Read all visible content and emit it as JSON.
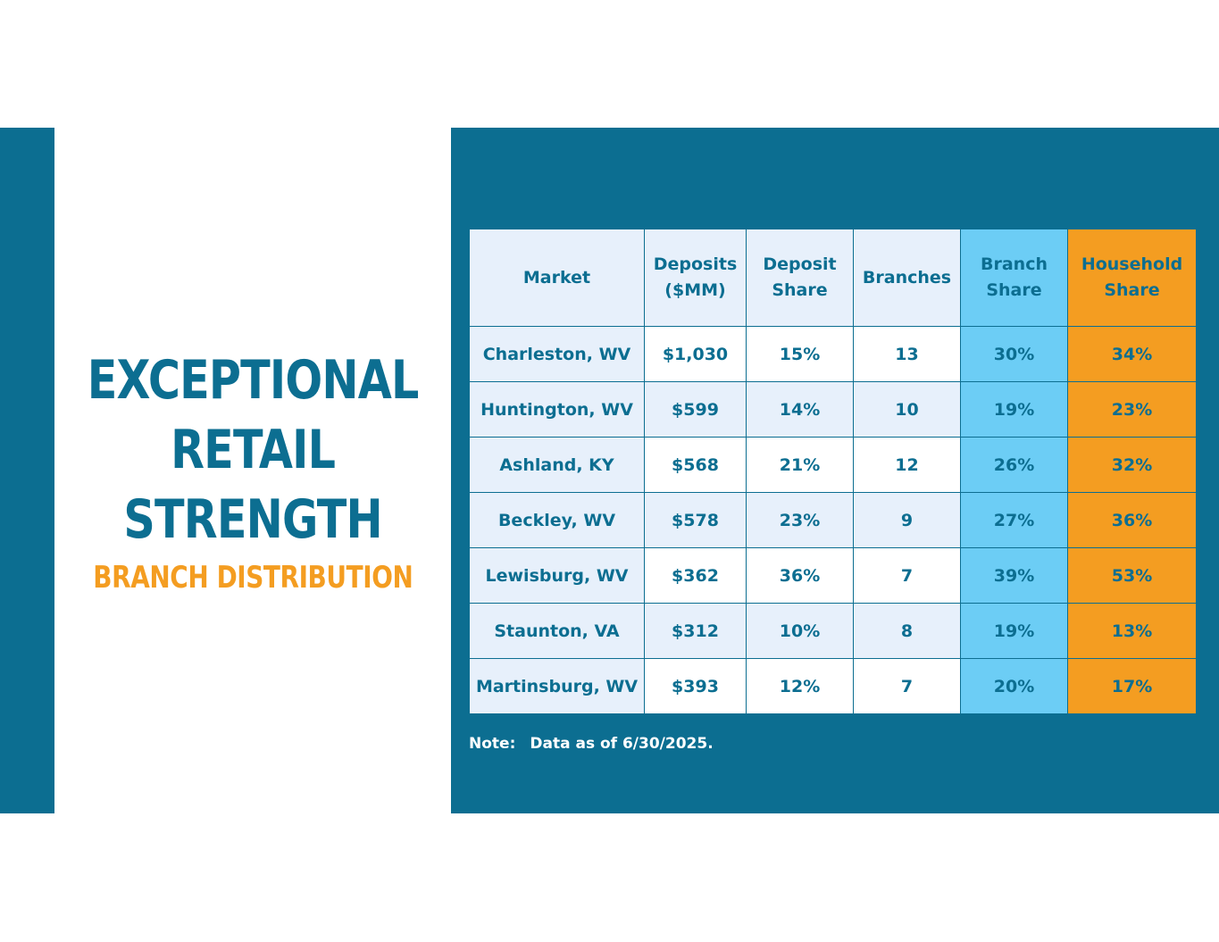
{
  "title": {
    "lines": [
      "EXCEPTIONAL",
      "RETAIL",
      "STRENGTH"
    ],
    "subtitle": "BRANCH DISTRIBUTION"
  },
  "table": {
    "headers": {
      "market": "Market",
      "deposits_1": "Deposits",
      "deposits_2": "($MM)",
      "deposit_share_1": "Deposit",
      "deposit_share_2": "Share",
      "branches": "Branches",
      "branch_share_1": "Branch",
      "branch_share_2": "Share",
      "household_share_1": "Household",
      "household_share_2": "Share"
    },
    "rows": [
      {
        "market": "Charleston, WV",
        "deposits": "$1,030",
        "deposit_share": "15%",
        "branches": "13",
        "branch_share": "30%",
        "household_share": "34%"
      },
      {
        "market": "Huntington, WV",
        "deposits": "$599",
        "deposit_share": "14%",
        "branches": "10",
        "branch_share": "19%",
        "household_share": "23%"
      },
      {
        "market": "Ashland, KY",
        "deposits": "$568",
        "deposit_share": "21%",
        "branches": "12",
        "branch_share": "26%",
        "household_share": "32%"
      },
      {
        "market": "Beckley, WV",
        "deposits": "$578",
        "deposit_share": "23%",
        "branches": "9",
        "branch_share": "27%",
        "household_share": "36%"
      },
      {
        "market": "Lewisburg, WV",
        "deposits": "$362",
        "deposit_share": "36%",
        "branches": "7",
        "branch_share": "39%",
        "household_share": "53%"
      },
      {
        "market": "Staunton, VA",
        "deposits": "$312",
        "deposit_share": "10%",
        "branches": "8",
        "branch_share": "19%",
        "household_share": "13%"
      },
      {
        "market": "Martinsburg, WV",
        "deposits": "$393",
        "deposit_share": "12%",
        "branches": "7",
        "branch_share": "20%",
        "household_share": "17%"
      }
    ]
  },
  "note": {
    "label": "Note:",
    "text": "Data as of 6/30/2025."
  },
  "colors": {
    "primary_blue": "#0c6e91",
    "accent_orange": "#f49d21",
    "branch_share_cyan": "#6ccdf5",
    "light_cell": "#e7f0fb"
  }
}
